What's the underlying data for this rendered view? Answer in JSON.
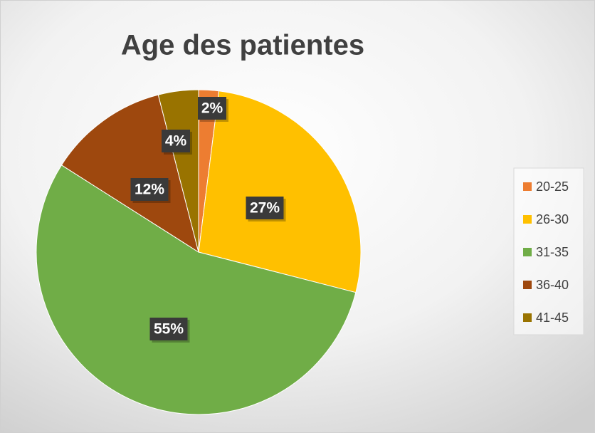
{
  "chart_data": {
    "type": "pie",
    "title": "Age des patientes",
    "categories": [
      "20-25",
      "26-30",
      "31-35",
      "36-40",
      "41-45"
    ],
    "values": [
      2,
      27,
      55,
      12,
      4
    ],
    "value_labels": [
      "2%",
      "27%",
      "55%",
      "12%",
      "4%"
    ],
    "colors": [
      "#ed7d31",
      "#ffc000",
      "#70ad47",
      "#9e480e",
      "#997300"
    ],
    "legend": "right"
  }
}
